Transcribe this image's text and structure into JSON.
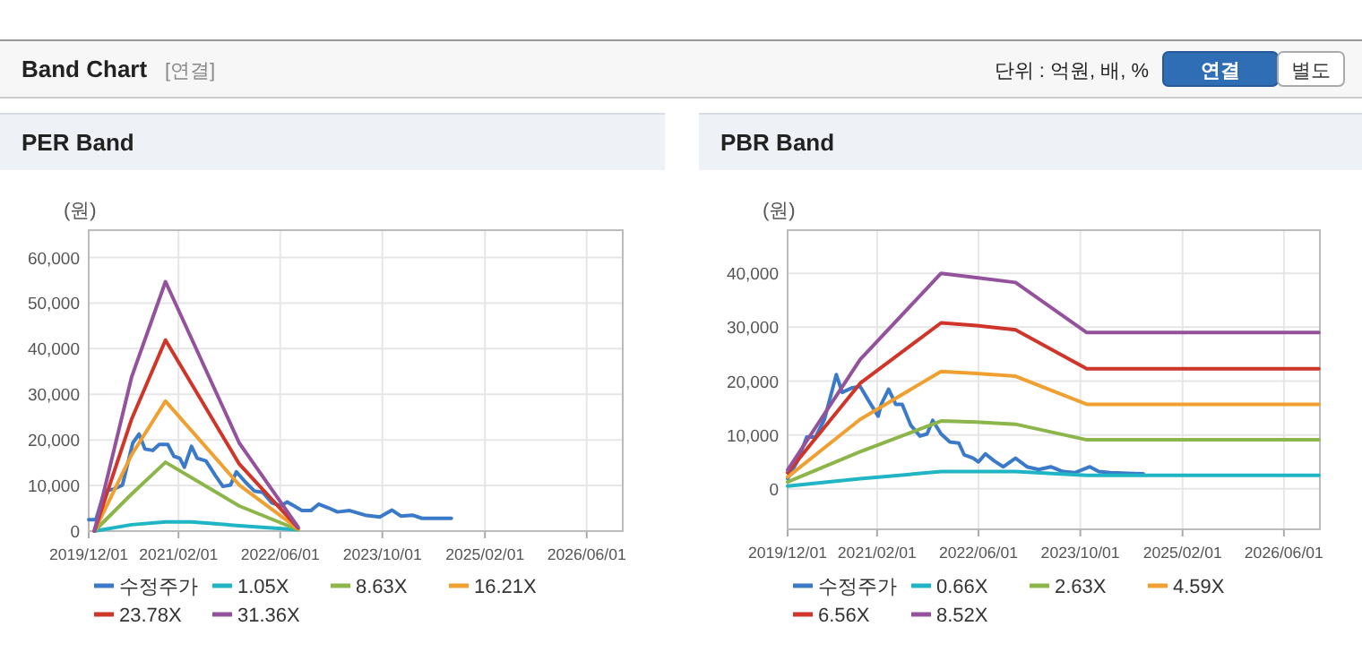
{
  "chart_data": [
    {
      "type": "line",
      "title": "PER Band",
      "ylabel": "(원)",
      "grid": true,
      "legend": "bottom",
      "annotations": [
        "Band Chart",
        "[연결]",
        "단위 : 억원, 배, %",
        "연결",
        "별도"
      ],
      "xlim": [
        "2019-12-01",
        "2026-11-20"
      ],
      "ylim": [
        0,
        66000
      ],
      "xticks": [
        {
          "value": "2019-12-01",
          "label": "2019/12/01"
        },
        {
          "value": "2021-02-01",
          "label": "2021/02/01"
        },
        {
          "value": "2022-06-01",
          "label": "2022/06/01"
        },
        {
          "value": "2023-10-01",
          "label": "2023/10/01"
        },
        {
          "value": "2025-02-01",
          "label": "2025/02/01"
        },
        {
          "value": "2026-06-01",
          "label": "2026/06/01"
        }
      ],
      "yticks": [
        0,
        {
          "value": 10000,
          "label": "10,000"
        },
        {
          "value": 20000,
          "label": "20,000"
        },
        {
          "value": 30000,
          "label": "30,000"
        },
        {
          "value": 40000,
          "label": "40,000"
        },
        {
          "value": 50000,
          "label": "50,000"
        },
        {
          "value": 60000,
          "label": "60,000"
        }
      ],
      "series": [
        {
          "name": "수정주가",
          "color": "#3a7ac8",
          "x": [
            "2019-12-01",
            "2020-01-04",
            "2020-02-15",
            "2020-03-28",
            "2020-05-10",
            "2020-06-28",
            "2020-07-28",
            "2020-08-25",
            "2020-10-01",
            "2020-11-01",
            "2020-12-12",
            "2021-01-10",
            "2021-02-07",
            "2021-03-01",
            "2021-04-04",
            "2021-05-01",
            "2021-06-12",
            "2021-07-28",
            "2021-09-01",
            "2021-10-07",
            "2021-11-04",
            "2021-12-16",
            "2022-01-28",
            "2022-03-10",
            "2022-04-22",
            "2022-06-04",
            "2022-07-04",
            "2022-08-07",
            "2022-09-13",
            "2022-10-25",
            "2022-12-01",
            "2023-01-16",
            "2023-03-01",
            "2023-04-28",
            "2023-07-10",
            "2023-09-19",
            "2023-11-16",
            "2023-12-28",
            "2024-02-21",
            "2024-04-07",
            "2024-08-25"
          ],
          "values": [
            2500,
            2500,
            8800,
            9200,
            10100,
            19300,
            21300,
            18000,
            17700,
            19000,
            19000,
            16400,
            16000,
            14000,
            18600,
            16000,
            15400,
            12100,
            9800,
            10100,
            13000,
            10800,
            8800,
            8500,
            6200,
            5500,
            6400,
            5500,
            4500,
            4500,
            5900,
            5100,
            4200,
            4500,
            3500,
            3100,
            4600,
            3300,
            3500,
            2800,
            2800
          ]
        },
        {
          "name": "1.05X",
          "color": "#1fb5c4",
          "x": [
            "2019-12-28",
            "2020-06-22",
            "2020-12-01",
            "2021-04-04",
            "2021-11-18",
            "2022-08-25"
          ],
          "values": [
            0,
            1400,
            2000,
            2000,
            1200,
            300
          ]
        },
        {
          "name": "8.63X",
          "color": "#8cb54a",
          "x": [
            "2019-12-28",
            "2020-06-22",
            "2020-12-01",
            "2021-11-18",
            "2022-08-25"
          ],
          "values": [
            0,
            8100,
            15100,
            5500,
            300
          ]
        },
        {
          "name": "16.21X",
          "color": "#f0a030",
          "x": [
            "2019-12-28",
            "2020-06-22",
            "2020-12-01",
            "2021-11-18",
            "2022-08-25"
          ],
          "values": [
            0,
            16700,
            28500,
            10100,
            500
          ]
        },
        {
          "name": "23.78X",
          "color": "#d0352a",
          "x": [
            "2019-12-28",
            "2020-06-22",
            "2020-12-01",
            "2021-11-18",
            "2022-08-25"
          ],
          "values": [
            0,
            24500,
            41900,
            14700,
            700
          ]
        },
        {
          "name": "31.36X",
          "color": "#93529b",
          "x": [
            "2019-12-28",
            "2020-06-22",
            "2020-12-01",
            "2021-11-18",
            "2022-08-25"
          ],
          "values": [
            0,
            33700,
            54700,
            19300,
            900
          ]
        }
      ]
    },
    {
      "type": "line",
      "title": "PBR Band",
      "ylabel": "(원)",
      "grid": true,
      "legend": "bottom",
      "xlim": [
        "2019-12-01",
        "2026-11-20"
      ],
      "ylim": [
        -7500,
        48000
      ],
      "xticks": [
        {
          "value": "2019-12-01",
          "label": "2019/12/01"
        },
        {
          "value": "2021-02-01",
          "label": "2021/02/01"
        },
        {
          "value": "2022-06-01",
          "label": "2022/06/01"
        },
        {
          "value": "2023-10-01",
          "label": "2023/10/01"
        },
        {
          "value": "2025-02-01",
          "label": "2025/02/01"
        },
        {
          "value": "2026-06-01",
          "label": "2026/06/01"
        }
      ],
      "yticks": [
        0,
        {
          "value": 10000,
          "label": "10,000"
        },
        {
          "value": 20000,
          "label": "20,000"
        },
        {
          "value": 30000,
          "label": "30,000"
        },
        {
          "value": 40000,
          "label": "40,000"
        }
      ],
      "series": [
        {
          "name": "수정주가",
          "color": "#3a7ac8",
          "x": [
            "2019-12-01",
            "2020-01-18",
            "2020-03-01",
            "2020-04-12",
            "2020-05-25",
            "2020-07-21",
            "2020-08-18",
            "2020-10-01",
            "2020-11-12",
            "2020-12-25",
            "2021-02-06",
            "2021-02-21",
            "2021-03-28",
            "2021-05-01",
            "2021-06-01",
            "2021-07-12",
            "2021-08-25",
            "2021-09-28",
            "2021-10-25",
            "2021-12-04",
            "2022-01-15",
            "2022-02-27",
            "2022-03-25",
            "2022-05-07",
            "2022-06-01",
            "2022-07-04",
            "2022-08-15",
            "2022-09-28",
            "2022-11-25",
            "2023-01-19",
            "2023-03-16",
            "2023-05-13",
            "2023-07-10",
            "2023-09-04",
            "2023-11-16",
            "2023-12-28",
            "2024-02-21",
            "2024-07-28"
          ],
          "values": [
            1900,
            5200,
            9600,
            9600,
            12900,
            21200,
            17900,
            18700,
            19000,
            16200,
            13500,
            15700,
            18500,
            15700,
            15700,
            11800,
            9800,
            10200,
            12700,
            10200,
            8700,
            8500,
            6300,
            5700,
            5000,
            6500,
            5200,
            4100,
            5700,
            4100,
            3600,
            4100,
            3200,
            3000,
            4100,
            3200,
            3000,
            2800
          ]
        },
        {
          "name": "0.66X",
          "color": "#1fb5c4",
          "x": [
            "2019-12-01",
            "2020-11-12",
            "2021-12-04",
            "2022-05-22",
            "2022-11-25",
            "2023-11-01",
            "2026-11-15"
          ],
          "values": [
            500,
            1900,
            3200,
            3200,
            3200,
            2500,
            2500
          ]
        },
        {
          "name": "2.63X",
          "color": "#8cb54a",
          "x": [
            "2019-12-01",
            "2020-11-12",
            "2021-12-04",
            "2022-05-22",
            "2022-11-25",
            "2023-11-01",
            "2026-11-15"
          ],
          "values": [
            1300,
            6900,
            12600,
            12400,
            12000,
            9100,
            9100
          ]
        },
        {
          "name": "4.59X",
          "color": "#f0a030",
          "x": [
            "2019-12-01",
            "2020-11-12",
            "2021-12-04",
            "2022-05-22",
            "2022-11-25",
            "2023-11-01",
            "2026-11-15"
          ],
          "values": [
            2200,
            12900,
            21800,
            21400,
            20900,
            15700,
            15700
          ]
        },
        {
          "name": "6.56X",
          "color": "#d0352a",
          "x": [
            "2019-12-01",
            "2020-11-12",
            "2021-12-04",
            "2022-05-22",
            "2022-11-25",
            "2023-11-01",
            "2026-11-15"
          ],
          "values": [
            3000,
            19600,
            30800,
            30300,
            29500,
            22300,
            22300
          ]
        },
        {
          "name": "8.52X",
          "color": "#93529b",
          "x": [
            "2019-12-01",
            "2020-11-12",
            "2021-12-04",
            "2022-05-22",
            "2022-11-25",
            "2023-11-01",
            "2026-11-15"
          ],
          "values": [
            3500,
            24000,
            40000,
            39200,
            38300,
            29000,
            29000
          ]
        }
      ]
    }
  ]
}
